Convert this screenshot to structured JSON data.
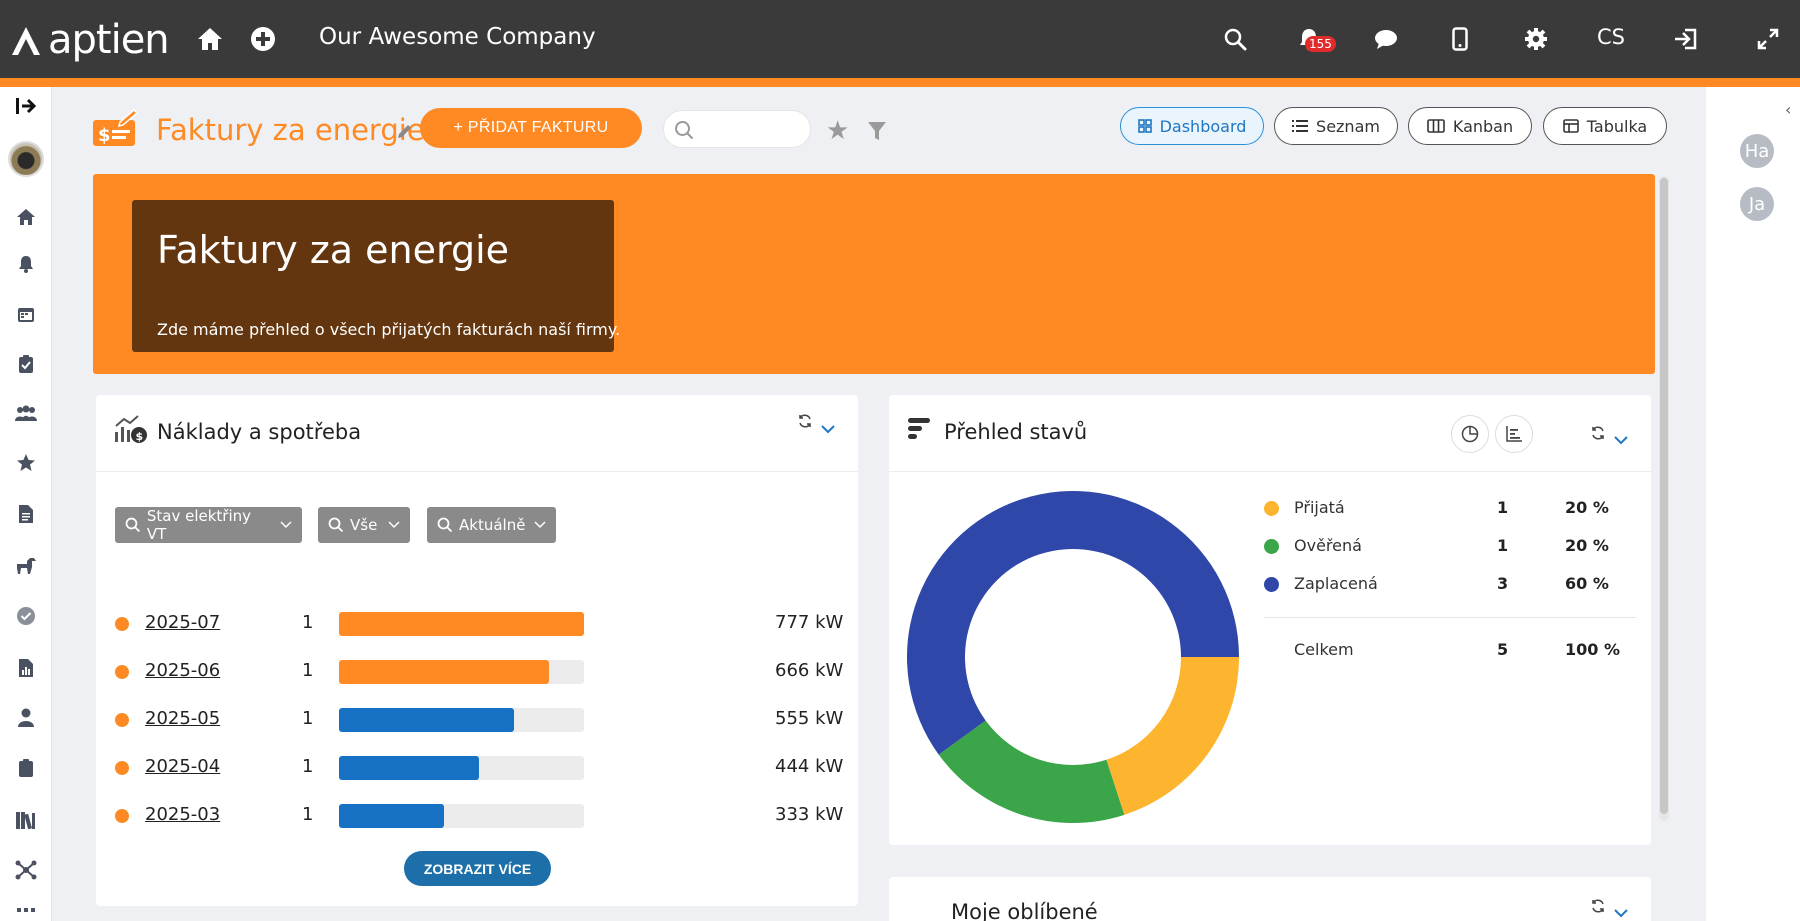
{
  "app": {
    "logo_text": "aptien",
    "company": "Our Awesome Company",
    "language": "CS",
    "notification_count": "155"
  },
  "header": {
    "title": "Faktury za energie",
    "add_button": "+ PŘIDAT FAKTURU",
    "search_placeholder": "",
    "views": [
      {
        "label": "Dashboard",
        "active": true,
        "icon": "grid-icon"
      },
      {
        "label": "Seznam",
        "active": false,
        "icon": "list-icon"
      },
      {
        "label": "Kanban",
        "active": false,
        "icon": "columns-icon"
      },
      {
        "label": "Tabulka",
        "active": false,
        "icon": "table-icon"
      }
    ]
  },
  "banner": {
    "title": "Faktury za energie",
    "subtitle": "Zde máme přehled o všech přijatých fakturách naší firmy."
  },
  "costs_card": {
    "title": "Náklady a spotřeba",
    "filters": [
      "Stav elektřiny VT",
      "Vše",
      "Aktuálně"
    ],
    "rows": [
      {
        "period": "2025-07",
        "count": "1",
        "value": "777 kW",
        "fill": 1.0,
        "color": "#ff8a24"
      },
      {
        "period": "2025-06",
        "count": "1",
        "value": "666 kW",
        "fill": 0.857,
        "color": "#ff8a24"
      },
      {
        "period": "2025-05",
        "count": "1",
        "value": "555 kW",
        "fill": 0.714,
        "color": "#1670c4"
      },
      {
        "period": "2025-04",
        "count": "1",
        "value": "444 kW",
        "fill": 0.571,
        "color": "#1670c4"
      },
      {
        "period": "2025-03",
        "count": "1",
        "value": "333 kW",
        "fill": 0.429,
        "color": "#1670c4"
      }
    ],
    "more_button": "ZOBRAZIT VÍCE"
  },
  "status_card": {
    "title": "Přehled stavů",
    "total_label": "Celkem",
    "total_count": "5",
    "total_pct": "100 %"
  },
  "chart_data": {
    "type": "pie",
    "categories": [
      "Přijatá",
      "Ověřená",
      "Zaplacená"
    ],
    "values": [
      1,
      1,
      3
    ],
    "percentages": [
      "20 %",
      "20 %",
      "60 %"
    ],
    "colors": [
      "#fdb52f",
      "#3ba54a",
      "#2e47a8"
    ],
    "donut": true,
    "legend": "right"
  },
  "favorites_card": {
    "title": "Moje oblíbené"
  },
  "right_rail": {
    "avatars": [
      "Ha",
      "Ja"
    ]
  },
  "colors": {
    "accent": "#ff8a24",
    "topbar": "#3a3a3a",
    "banner_box": "#63360f",
    "primary_blue": "#1c6fa8"
  }
}
